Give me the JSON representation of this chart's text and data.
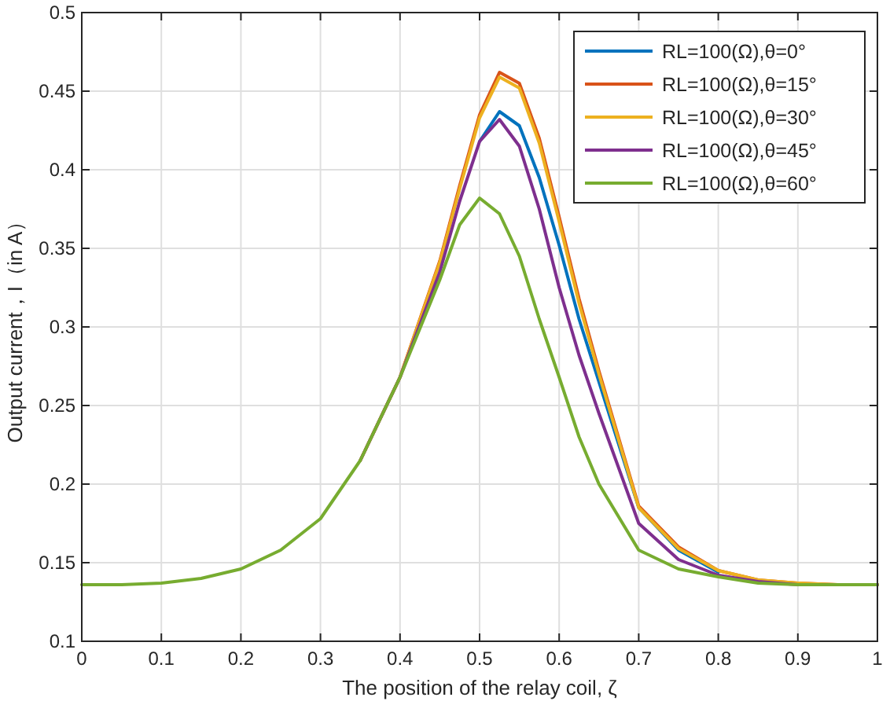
{
  "chart_data": {
    "type": "line",
    "xlabel": "The position of the relay coil, ζ",
    "ylabel": "Output current，I（in A）",
    "x": [
      0,
      0.05,
      0.1,
      0.15,
      0.2,
      0.25,
      0.3,
      0.35,
      0.4,
      0.45,
      0.475,
      0.5,
      0.525,
      0.55,
      0.575,
      0.6,
      0.625,
      0.65,
      0.7,
      0.75,
      0.8,
      0.85,
      0.9,
      0.95,
      1
    ],
    "series": [
      {
        "name": "RL=100(Ω),θ=0°",
        "color": "#0072bd",
        "values": [
          null,
          null,
          null,
          null,
          null,
          null,
          null,
          null,
          null,
          null,
          null,
          0.418,
          0.437,
          0.428,
          0.395,
          0.352,
          0.305,
          0.265,
          0.185,
          0.158,
          0.144,
          null,
          null,
          null,
          null
        ]
      },
      {
        "name": "RL=100(Ω),θ=15°",
        "color": "#d95319",
        "values": [
          null,
          null,
          null,
          null,
          null,
          null,
          null,
          0.215,
          0.268,
          0.342,
          0.39,
          0.435,
          0.462,
          0.455,
          0.42,
          0.37,
          0.318,
          0.272,
          0.186,
          0.16,
          0.145,
          0.139,
          0.137,
          0.136,
          0.136
        ]
      },
      {
        "name": "RL=100(Ω),θ=30°",
        "color": "#edb120",
        "values": [
          null,
          null,
          null,
          null,
          null,
          null,
          null,
          0.215,
          0.268,
          0.341,
          0.388,
          0.433,
          0.459,
          0.452,
          0.417,
          0.367,
          0.315,
          0.27,
          0.185,
          0.159,
          0.145,
          0.139,
          0.137,
          0.136,
          0.136
        ]
      },
      {
        "name": "RL=100(Ω),θ=45°",
        "color": "#7e2f8e",
        "values": [
          null,
          null,
          null,
          null,
          null,
          null,
          null,
          0.215,
          0.268,
          0.335,
          0.38,
          0.418,
          0.432,
          0.415,
          0.375,
          0.325,
          0.282,
          0.245,
          0.175,
          0.152,
          0.142,
          0.138,
          0.136,
          0.136,
          0.136
        ]
      },
      {
        "name": "RL=100(Ω),θ=60°",
        "color": "#77ac30",
        "values": [
          0.136,
          0.136,
          0.137,
          0.14,
          0.146,
          0.158,
          0.178,
          0.215,
          0.268,
          0.33,
          0.365,
          0.382,
          0.372,
          0.345,
          0.305,
          0.268,
          0.23,
          0.2,
          0.158,
          0.146,
          0.141,
          0.137,
          0.136,
          0.136,
          0.136
        ]
      }
    ],
    "xlim": [
      0,
      1
    ],
    "xticks": [
      0,
      0.1,
      0.2,
      0.3,
      0.4,
      0.5,
      0.6,
      0.7,
      0.8,
      0.9,
      1
    ],
    "ylim": [
      0.1,
      0.5
    ],
    "yticks": [
      0.1,
      0.15,
      0.2,
      0.25,
      0.3,
      0.35,
      0.4,
      0.45,
      0.5
    ],
    "grid": true,
    "legend": "top right",
    "marker": "none",
    "line_style": "solid"
  }
}
